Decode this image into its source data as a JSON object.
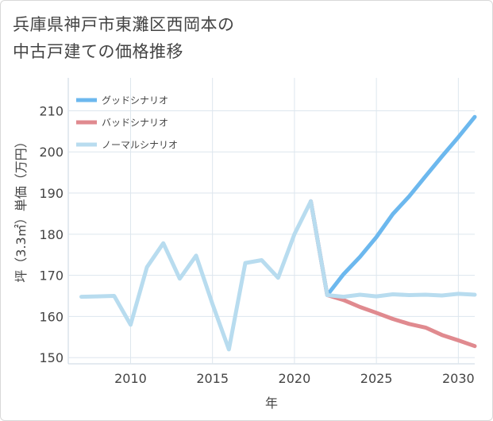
{
  "title_line1": "兵庫県神戸市東灘区西岡本の",
  "title_line2": "中古戸建ての価格推移",
  "chart_data": {
    "type": "line",
    "title": "兵庫県神戸市東灘区西岡本の中古戸建ての価格推移",
    "xlabel": "年",
    "ylabel": "坪（3.3㎡）単価（万円）",
    "xlim": [
      2006.2,
      2031
    ],
    "ylim": [
      148.5,
      218
    ],
    "x_ticks": [
      2010,
      2015,
      2020,
      2025,
      2030
    ],
    "y_ticks": [
      150,
      160,
      170,
      180,
      190,
      200,
      210
    ],
    "grid": true,
    "legend_position": "top-left",
    "series": [
      {
        "name": "グッドシナリオ",
        "color": "#6cb8ee",
        "x": [
          2021,
          2022,
          2023,
          2024,
          2025,
          2026,
          2027,
          2028,
          2029,
          2030,
          2031
        ],
        "y": [
          188,
          165.2,
          170.3,
          174.5,
          179.3,
          184.9,
          189.2,
          194.1,
          198.9,
          203.6,
          208.5
        ]
      },
      {
        "name": "バッドシナリオ",
        "color": "#e08a8f",
        "x": [
          2021,
          2022,
          2023,
          2024,
          2025,
          2026,
          2027,
          2028,
          2029,
          2030,
          2031
        ],
        "y": [
          188,
          165.2,
          164,
          162.3,
          160.9,
          159.4,
          158.2,
          157.3,
          155.5,
          154.2,
          152.8
        ]
      },
      {
        "name": "ノーマルシナリオ",
        "color": "#b8dcef",
        "x": [
          2007,
          2008,
          2009,
          2010,
          2011,
          2012,
          2013,
          2014,
          2015,
          2016,
          2017,
          2018,
          2019,
          2020,
          2021,
          2022,
          2023,
          2024,
          2025,
          2026,
          2027,
          2028,
          2029,
          2030,
          2031
        ],
        "y": [
          164.8,
          164.9,
          165,
          158,
          172,
          177.8,
          169.2,
          174.8,
          163,
          152,
          173,
          173.7,
          169.4,
          180,
          188,
          165.2,
          164.8,
          165.3,
          164.9,
          165.4,
          165.2,
          165.3,
          165.1,
          165.5,
          165.3
        ]
      }
    ]
  }
}
